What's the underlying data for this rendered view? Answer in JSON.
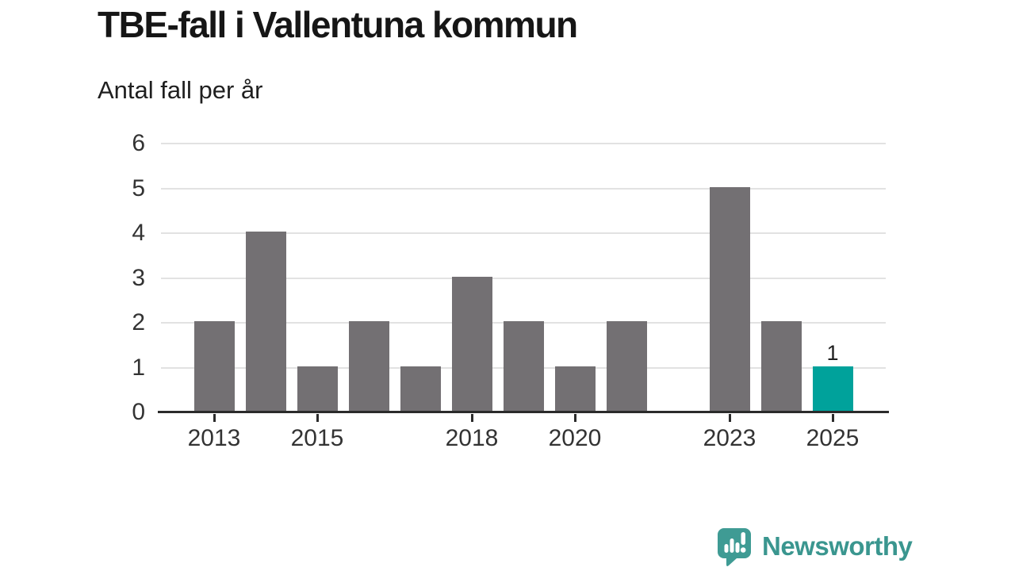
{
  "chart_data": {
    "type": "bar",
    "title": "TBE-fall i Vallentuna kommun",
    "subtitle": "Antal fall per år",
    "xlabel": "",
    "ylabel": "",
    "categories": [
      "2013",
      "2014",
      "2015",
      "2016",
      "2017",
      "2018",
      "2019",
      "2020",
      "2021",
      "2022",
      "2023",
      "2024",
      "2025"
    ],
    "values": [
      2,
      4,
      1,
      2,
      1,
      3,
      2,
      1,
      2,
      0,
      5,
      2,
      1
    ],
    "highlight_category": "2025",
    "bar_value_labels": [
      {
        "category": "2025",
        "label": "1"
      }
    ],
    "ylim": [
      0,
      6
    ],
    "yticks": [
      0,
      1,
      2,
      3,
      4,
      5,
      6
    ],
    "xtick_labels": [
      "2013",
      "2015",
      "2018",
      "2020",
      "2023",
      "2025"
    ],
    "grid": "horizontal",
    "legend": "none",
    "colors": {
      "bar": "#737073",
      "highlight": "#00a29b",
      "gridline": "#e2e2e2",
      "axis": "#2b2b2b",
      "tick_label": "#333333"
    }
  },
  "footer": {
    "brand": "Newsworthy",
    "logo_color": "#3f9b94",
    "text_color": "#3a968f",
    "logo_glyph_color": "#ffffff"
  }
}
